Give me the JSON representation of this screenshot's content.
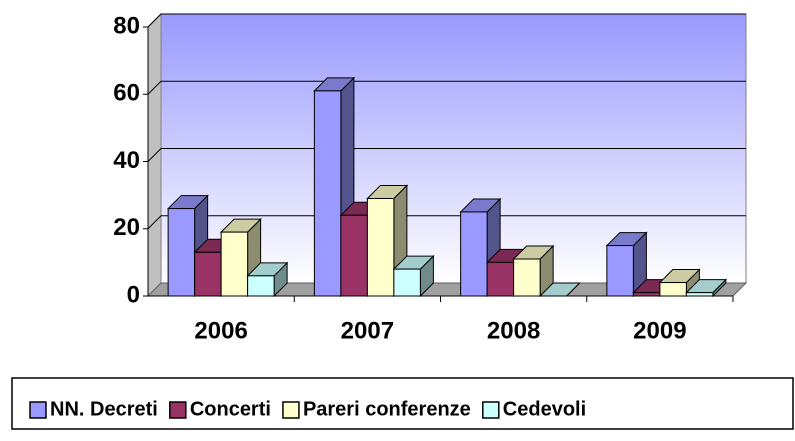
{
  "chart_data": {
    "type": "bar3d",
    "categories": [
      "2006",
      "2007",
      "2008",
      "2009"
    ],
    "series": [
      {
        "name": "NN. Decreti",
        "color": "#9999ff",
        "values": [
          26,
          61,
          25,
          15
        ]
      },
      {
        "name": "Concerti",
        "color": "#993366",
        "values": [
          13,
          24,
          10,
          1
        ]
      },
      {
        "name": "Pareri conferenze",
        "color": "#ffffcc",
        "values": [
          19,
          29,
          11,
          4
        ]
      },
      {
        "name": "Cedevoli",
        "color": "#ccffff",
        "values": [
          6,
          8,
          0,
          1
        ]
      }
    ],
    "ylim": [
      0,
      80
    ],
    "yticks": [
      0,
      20,
      40,
      60,
      80
    ],
    "grid": true,
    "legend": "bottom"
  }
}
